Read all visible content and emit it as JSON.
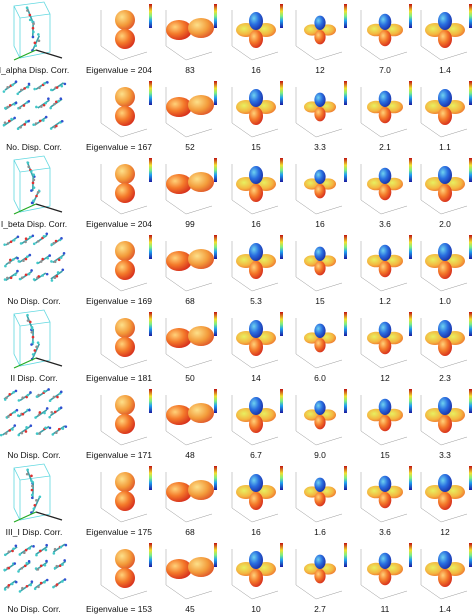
{
  "rows": [
    {
      "structure_label": "I_alpha Disp. Corr.",
      "eigenvalues": [
        "Eigenvalue = 204",
        "83",
        "16",
        "12",
        "7.0",
        "1.4"
      ]
    },
    {
      "structure_label": "No. Disp. Corr.",
      "eigenvalues": [
        "Eigenvalue = 167",
        "52",
        "15",
        "3.3",
        "2.1",
        "1.1"
      ]
    },
    {
      "structure_label": "I_beta Disp. Corr.",
      "eigenvalues": [
        "Eigenvalue = 204",
        "99",
        "16",
        "16",
        "3.6",
        "2.0"
      ]
    },
    {
      "structure_label": "No Disp. Corr.",
      "eigenvalues": [
        "Eigenvalue = 169",
        "68",
        "5.3",
        "15",
        "1.2",
        "1.0"
      ]
    },
    {
      "structure_label": "II Disp. Corr.",
      "eigenvalues": [
        "Eigenvalue = 181",
        "50",
        "14",
        "6.0",
        "12",
        "2.3"
      ]
    },
    {
      "structure_label": "No Disp. Corr.",
      "eigenvalues": [
        "Eigenvalue = 171",
        "48",
        "6.7",
        "9.0",
        "15",
        "3.3"
      ]
    },
    {
      "structure_label": "III_I Disp. Corr.",
      "eigenvalues": [
        "Eigenvalue = 175",
        "68",
        "16",
        "1.6",
        "3.6",
        "12"
      ]
    },
    {
      "structure_label": "No Disp. Corr.",
      "eigenvalues": [
        "Eigenvalue = 153",
        "45",
        "10",
        "2.7",
        "11",
        "1.4"
      ]
    }
  ]
}
